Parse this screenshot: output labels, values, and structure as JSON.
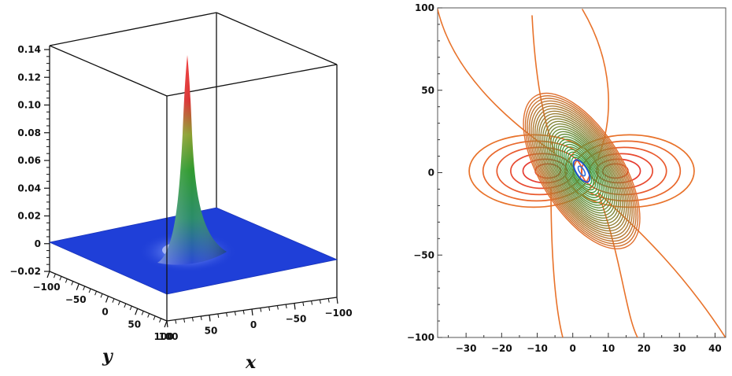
{
  "chart_data": [
    {
      "type": "surface",
      "xlabel": "x",
      "ylabel": "y",
      "zlabel": "",
      "x_ticks": [
        "100",
        "50",
        "0",
        "−50",
        "−100"
      ],
      "y_ticks": [
        "−100",
        "−50",
        "0",
        "50",
        "100"
      ],
      "z_ticks": [
        "0.14",
        "0.12",
        "0.10",
        "0.08",
        "0.06",
        "0.04",
        "0.02",
        "0",
        "−0.02"
      ],
      "xlim": [
        -100,
        100
      ],
      "ylim": [
        -100,
        100
      ],
      "zlim": [
        -0.02,
        0.14
      ],
      "peak": {
        "x": 0,
        "y": 0,
        "z": 0.135
      },
      "colors": {
        "base": "#1f3fd8",
        "mid": "#2e9a2e",
        "peak": "#e02020",
        "frame": "#111111"
      }
    },
    {
      "type": "contour",
      "x_ticks": [
        "−30",
        "−20",
        "−10",
        "0",
        "10",
        "20",
        "30",
        "40"
      ],
      "y_ticks": [
        "100",
        "50",
        "0",
        "−50",
        "−100"
      ],
      "xlim": [
        -38,
        43
      ],
      "ylim": [
        -100,
        100
      ],
      "colors": {
        "outer": "#e8722a",
        "inner": "#e03030",
        "center": "#2fa02f",
        "core": "#2050d0"
      }
    }
  ]
}
